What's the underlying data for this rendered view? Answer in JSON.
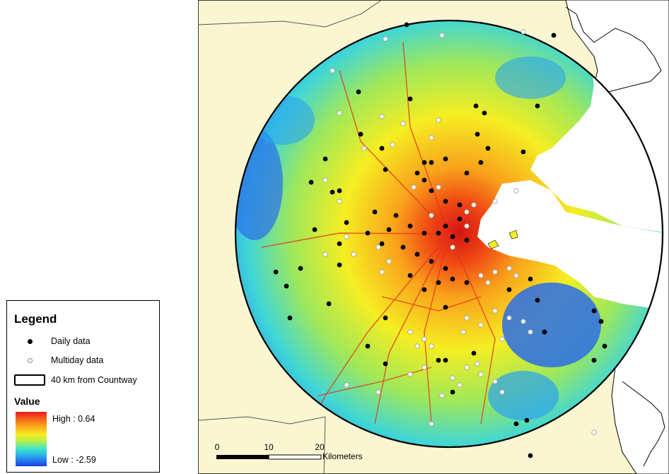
{
  "legend": {
    "title": "Legend",
    "daily_label": "Daily data",
    "multiday_label": "Multiday data",
    "boundary_label": "40 km from Countway",
    "value_title": "Value",
    "high_label": "High : 0.64",
    "low_label": "Low : -2.59"
  },
  "scale_bar": {
    "ticks": [
      "0",
      "10",
      "20"
    ],
    "unit": "Kilometers"
  },
  "colors": {
    "land": "#fbf6d2",
    "high": "#e8181f",
    "mid": "#f5ee22",
    "low": "#1b3fe4"
  }
}
